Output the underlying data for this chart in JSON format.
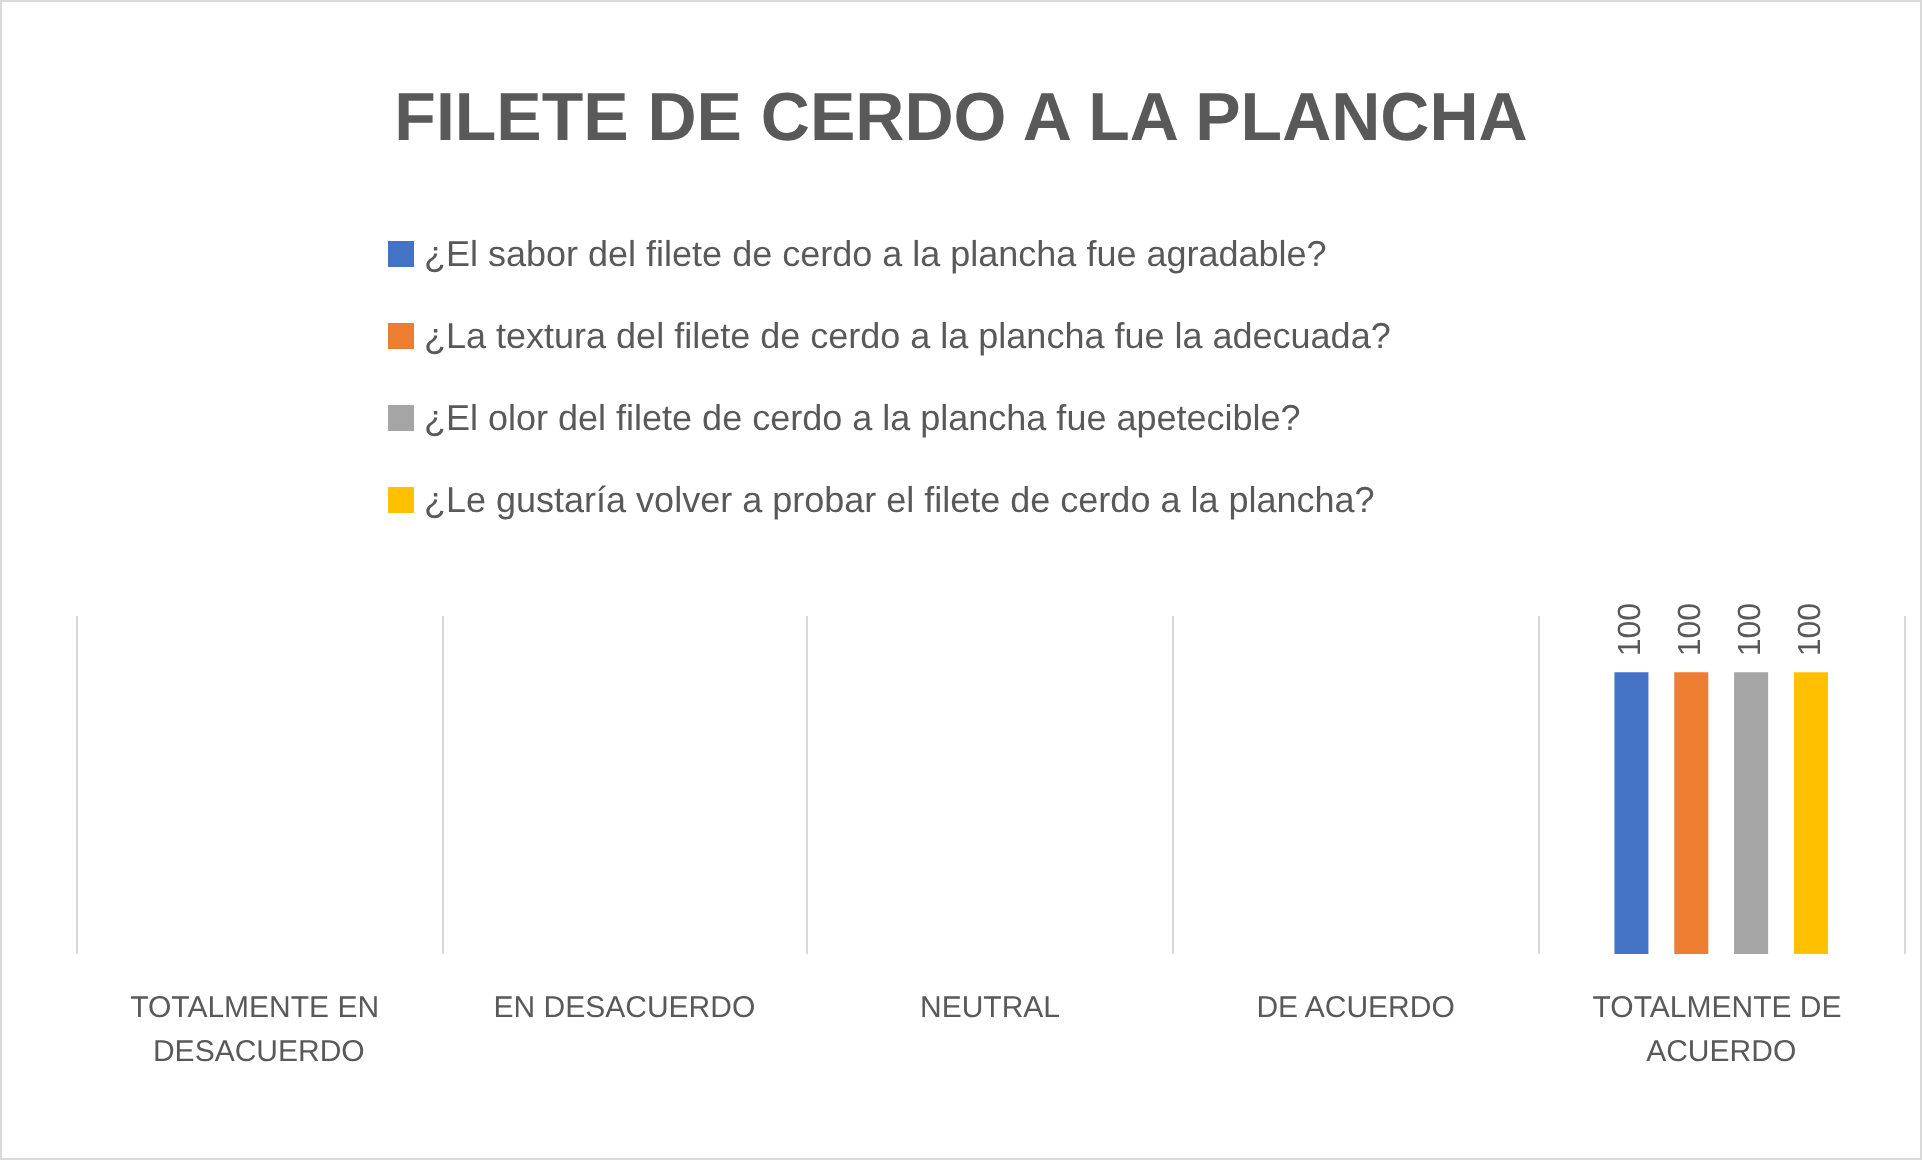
{
  "chart_data": {
    "type": "bar",
    "title": "FILETE DE CERDO A LA PLANCHA",
    "categories": [
      "TOTALMENTE EN DESACUERDO",
      "EN DESACUERDO",
      "NEUTRAL",
      "DE ACUERDO",
      "TOTALMENTE DE ACUERDO"
    ],
    "series": [
      {
        "name": "¿El sabor del filete de cerdo a la plancha fue agradable?",
        "color": "#4472c4",
        "values": [
          null,
          null,
          null,
          null,
          100
        ]
      },
      {
        "name": "¿La textura del filete de cerdo a la plancha fue la adecuada?",
        "color": "#ed7d31",
        "values": [
          null,
          null,
          null,
          null,
          100
        ]
      },
      {
        "name": "¿El olor del filete de cerdo a la plancha fue apetecible?",
        "color": "#a5a5a5",
        "values": [
          null,
          null,
          null,
          null,
          100
        ]
      },
      {
        "name": "¿Le gustaría volver a probar el filete de cerdo a la plancha?",
        "color": "#ffc000",
        "values": [
          null,
          null,
          null,
          null,
          100
        ]
      }
    ],
    "data_labels": true,
    "grid": "x",
    "legend": "top"
  }
}
